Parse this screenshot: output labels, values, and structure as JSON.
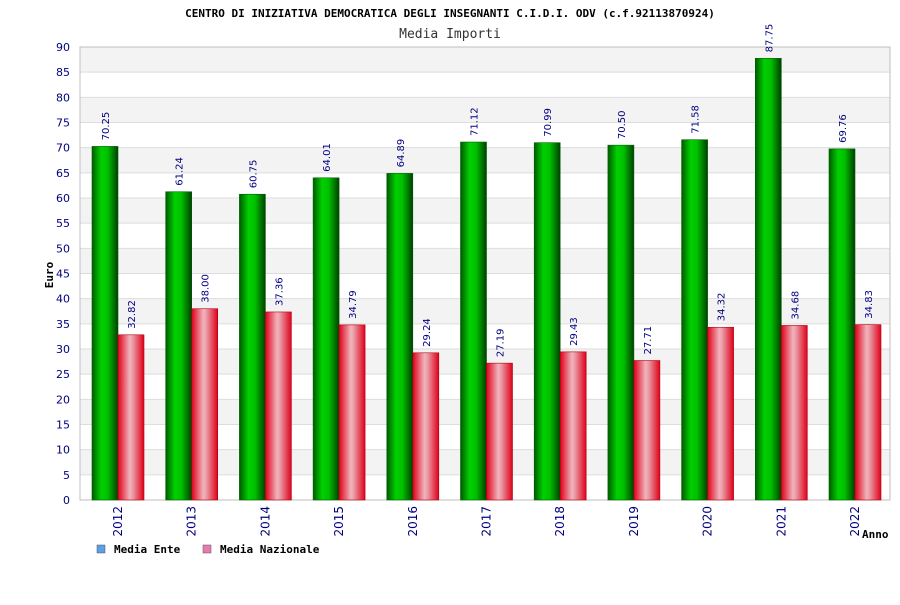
{
  "chart_data": {
    "type": "bar",
    "title": "CENTRO DI INIZIATIVA DEMOCRATICA DEGLI INSEGNANTI C.I.D.I. ODV (c.f.92113870924)",
    "subtitle": "Media Importi",
    "xlabel": "Anno",
    "ylabel": "Euro",
    "ylim": [
      0,
      90
    ],
    "yticks": [
      0,
      5,
      10,
      15,
      20,
      25,
      30,
      35,
      40,
      45,
      50,
      55,
      60,
      65,
      70,
      75,
      80,
      85,
      90
    ],
    "grid": "horizontal bands",
    "legend_position": "bottom-left",
    "categories": [
      "2012",
      "2013",
      "2014",
      "2015",
      "2016",
      "2017",
      "2018",
      "2019",
      "2020",
      "2021",
      "2022"
    ],
    "series": [
      {
        "name": "Media Ente",
        "legend_color": "#5aa0e6",
        "bar_color": "#00b000",
        "values": [
          70.25,
          61.24,
          60.75,
          64.01,
          64.89,
          71.12,
          70.99,
          70.5,
          71.58,
          87.75,
          69.76
        ],
        "labels": [
          "70.25",
          "61.24",
          "60.75",
          "64.01",
          "64.89",
          "71.12",
          "70.99",
          "70.50",
          "71.58",
          "87.75",
          "69.76"
        ]
      },
      {
        "name": "Media Nazionale",
        "legend_color": "#e87ab0",
        "bar_color": "#e8182a",
        "values": [
          32.82,
          38.0,
          37.36,
          34.79,
          29.24,
          27.19,
          29.43,
          27.71,
          34.32,
          34.68,
          34.83
        ],
        "labels": [
          "32.82",
          "38.00",
          "37.36",
          "34.79",
          "29.24",
          "27.19",
          "29.43",
          "27.71",
          "34.32",
          "34.68",
          "34.83"
        ]
      }
    ]
  }
}
